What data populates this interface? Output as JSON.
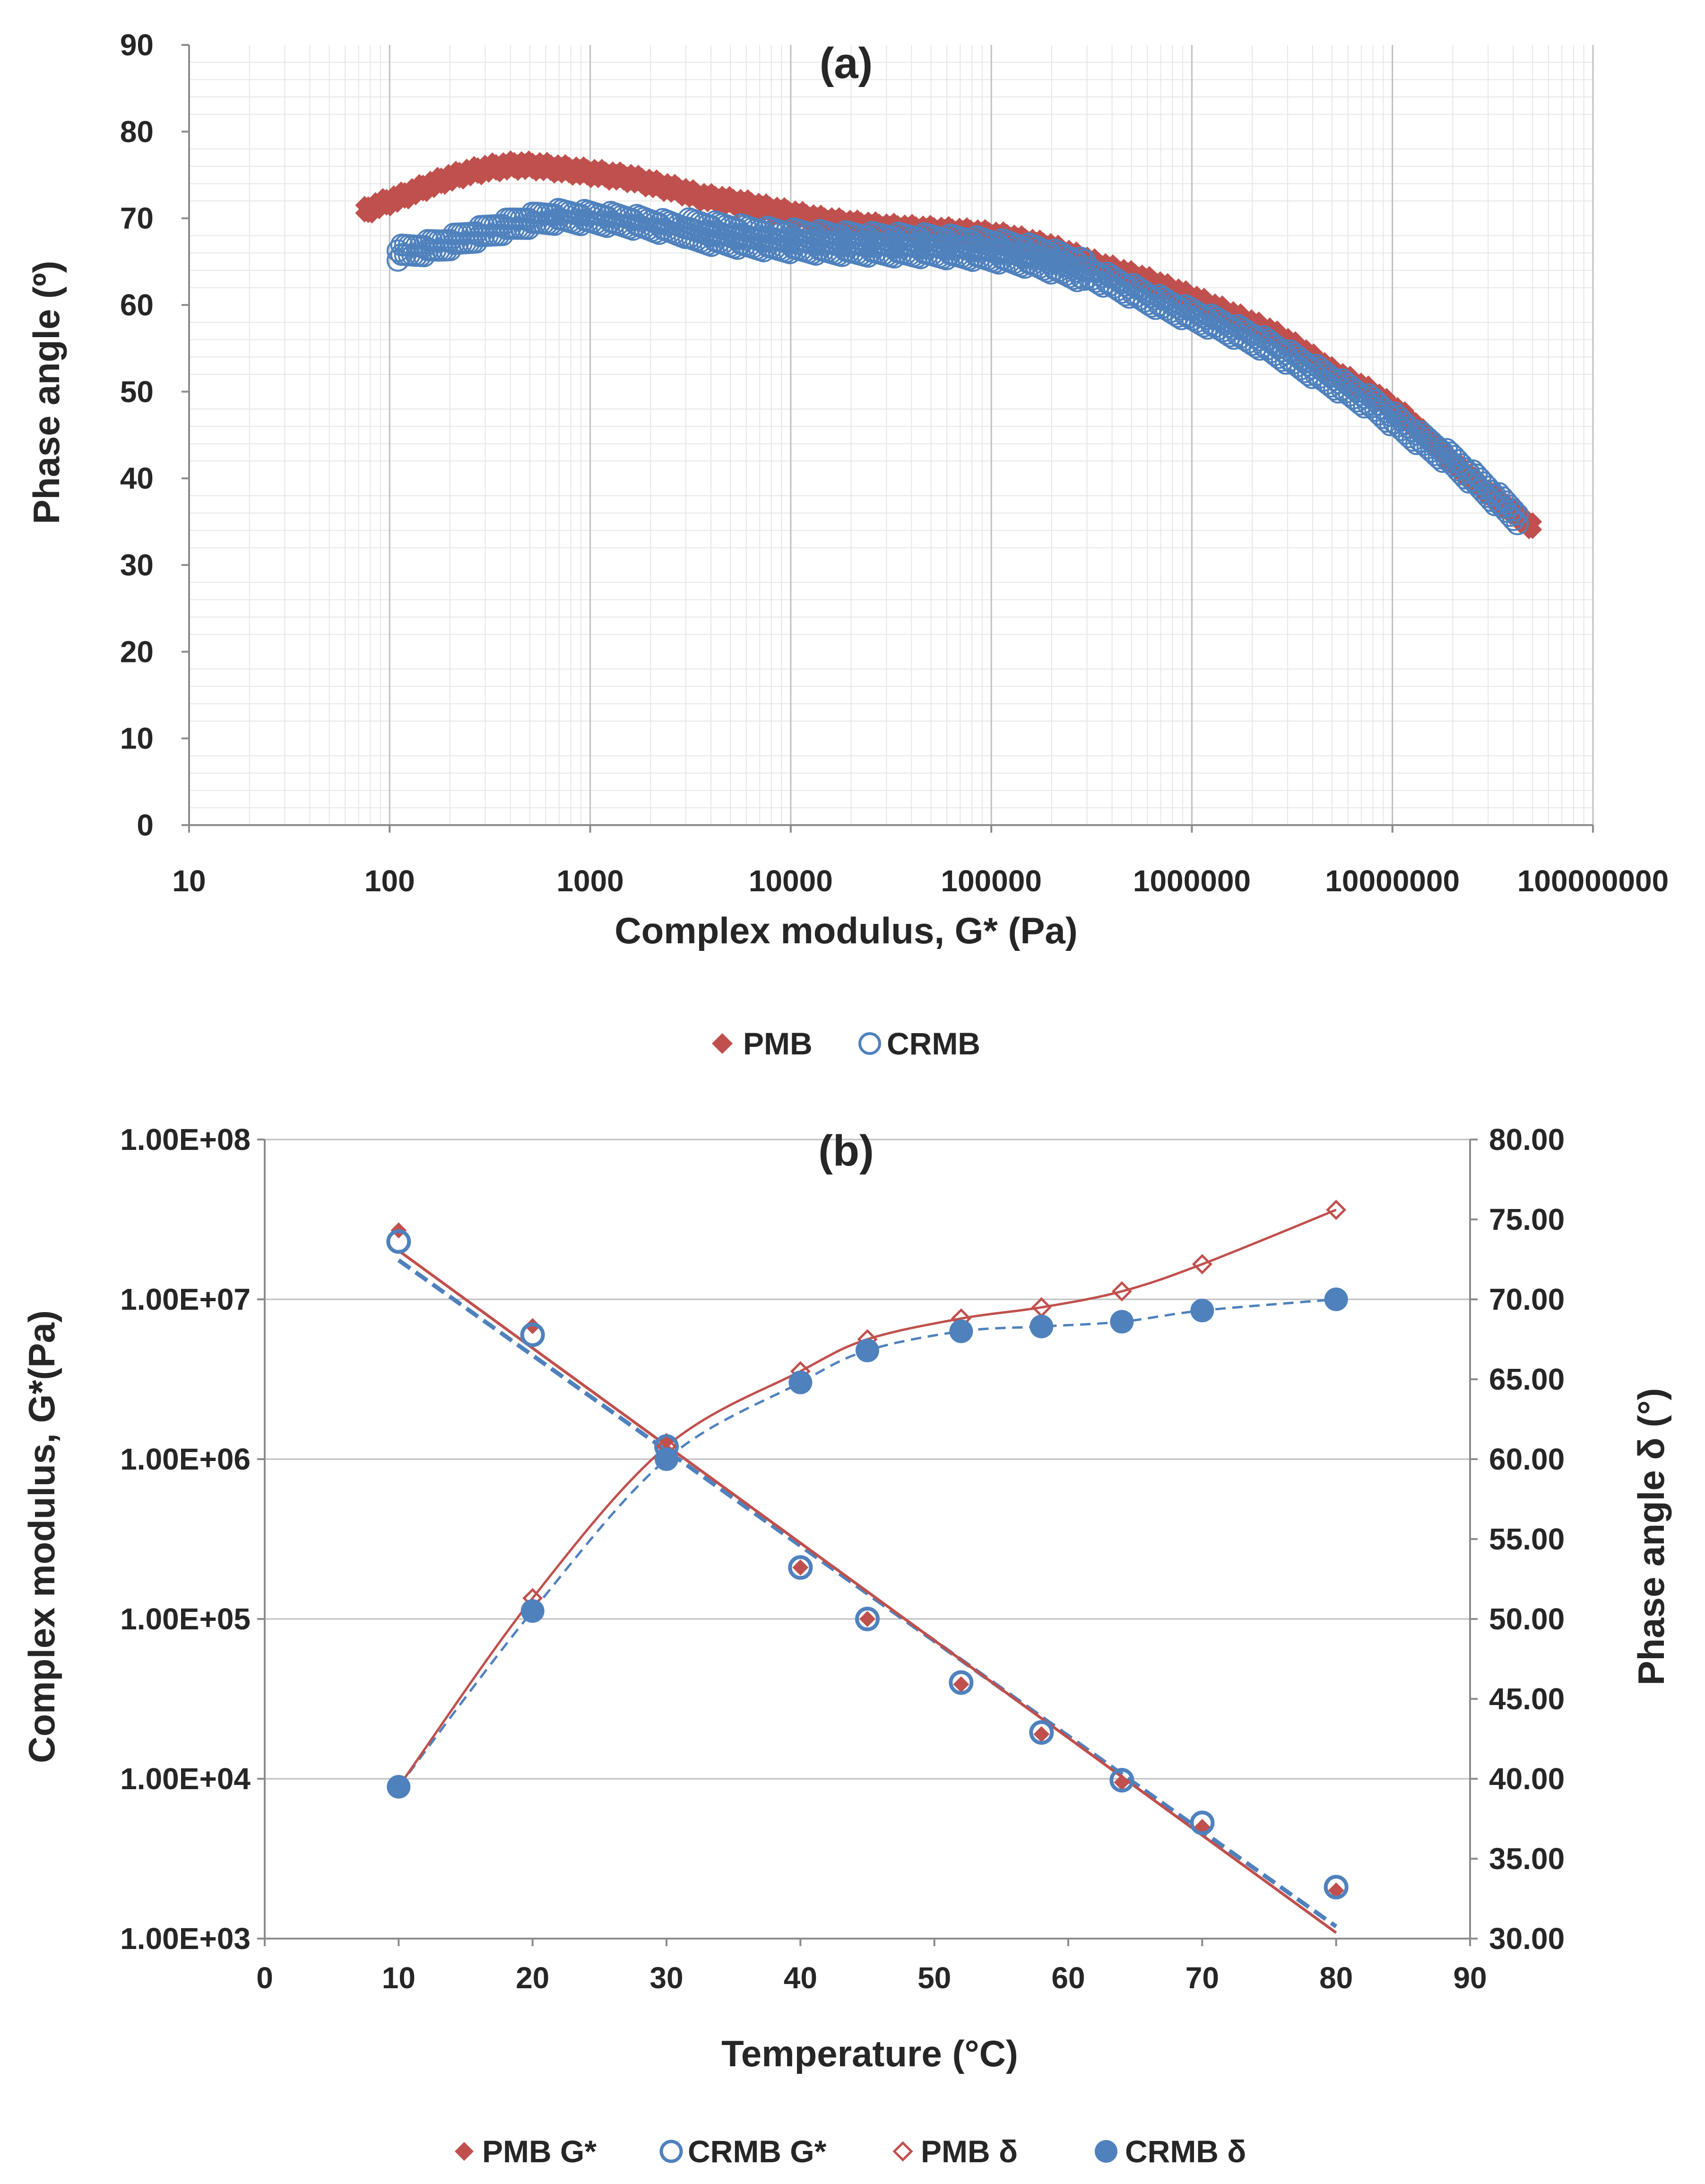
{
  "chart_data": [
    {
      "id": "a",
      "type": "scatter",
      "title": "(a)",
      "xlabel": "Complex modulus, G* (Pa)",
      "ylabel": "Phase angle (º)",
      "xscale": "log",
      "xlim": [
        10,
        100000000
      ],
      "ylim": [
        0,
        90
      ],
      "x_tick_labels": [
        "10",
        "100",
        "1000",
        "10000",
        "100000",
        "1000000",
        "10000000",
        "100000000"
      ],
      "y_tick_labels": [
        "0",
        "10",
        "20",
        "30",
        "40",
        "50",
        "60",
        "70",
        "80",
        "90"
      ],
      "grid": true,
      "legend": "bottom",
      "series": [
        {
          "name": "PMB",
          "marker": "filled-diamond",
          "color": "#C0504D",
          "x": [
            75,
            90,
            110,
            140,
            190,
            250,
            320,
            420,
            550,
            700,
            900,
            1200,
            1600,
            2100,
            2800,
            3500,
            4500,
            6000,
            7500,
            10000,
            14000,
            20000,
            30000,
            50000,
            80000,
            120000,
            200000,
            350000,
            600000,
            1000000,
            1600000,
            2500000,
            3500000,
            5000000,
            8000000,
            12000000,
            20000000,
            30000000,
            50000000
          ],
          "y": [
            71.5,
            72.3,
            73.0,
            74.0,
            75.2,
            76.0,
            76.5,
            76.8,
            76.7,
            76.4,
            76.1,
            75.7,
            75.3,
            74.6,
            73.9,
            73.2,
            72.8,
            72.3,
            71.8,
            71.2,
            70.5,
            70.0,
            69.6,
            69.3,
            69.0,
            68.5,
            67.3,
            65.2,
            63.5,
            61.5,
            59.5,
            57.5,
            55.5,
            53.0,
            50.5,
            47.5,
            42.5,
            39.0,
            35.0
          ]
        },
        {
          "name": "CRMB",
          "marker": "open-circle",
          "color": "#4F81BD",
          "x": [
            110,
            140,
            180,
            230,
            300,
            400,
            550,
            700,
            900,
            1200,
            1600,
            2200,
            3000,
            4200,
            6000,
            8500,
            12000,
            17000,
            25000,
            35000,
            50000,
            75000,
            110000,
            170000,
            260000,
            400000,
            600000,
            900000,
            1400000,
            2200000,
            3300000,
            5000000,
            8000000,
            12000000,
            20000000,
            30000000,
            42000000
          ],
          "y": [
            66.0,
            66.4,
            66.9,
            67.6,
            68.4,
            69.2,
            69.9,
            70.2,
            70.1,
            69.9,
            69.6,
            69.1,
            68.6,
            68.2,
            67.8,
            67.5,
            67.3,
            67.1,
            67.0,
            66.9,
            66.8,
            66.6,
            66.2,
            65.5,
            64.3,
            62.6,
            60.8,
            59.2,
            57.6,
            55.7,
            53.5,
            51.2,
            48.5,
            45.5,
            42.0,
            38.5,
            35.5
          ]
        }
      ]
    },
    {
      "id": "b",
      "type": "scatter",
      "title": "(b)",
      "xlabel": "Temperature (°C)",
      "ylabel": "Complex modulus,  G*(Pa)",
      "y2label": "Phase angle δ (°)",
      "xlim": [
        0,
        90
      ],
      "ylim": [
        1000,
        100000000
      ],
      "yscale": "log",
      "y2lim": [
        30,
        80
      ],
      "x_tick_labels": [
        "0",
        "10",
        "20",
        "30",
        "40",
        "50",
        "60",
        "70",
        "80",
        "90"
      ],
      "y_tick_labels": [
        "1.00E+03",
        "1.00E+04",
        "1.00E+05",
        "1.00E+06",
        "1.00E+07",
        "1.00E+08"
      ],
      "y2_tick_labels": [
        "30.00",
        "35.00",
        "40.00",
        "45.00",
        "50.00",
        "55.00",
        "60.00",
        "65.00",
        "70.00",
        "75.00",
        "80.00"
      ],
      "grid": true,
      "legend": "bottom",
      "x": [
        10,
        20,
        30,
        40,
        45,
        52,
        58,
        64,
        70,
        80
      ],
      "series": [
        {
          "name": "PMB G*",
          "axis": "left",
          "marker": "filled-diamond",
          "color": "#C0504D",
          "values": [
            27000000,
            6800000,
            1300000,
            210000,
            100000,
            39000,
            19000,
            9500,
            5000,
            2000
          ]
        },
        {
          "name": "CRMB G*",
          "axis": "left",
          "marker": "open-circle",
          "color": "#4F81BD",
          "values": [
            23000000,
            6000000,
            1200000,
            210000,
            100000,
            40000,
            19500,
            9800,
            5300,
            2100
          ]
        },
        {
          "name": "PMB δ",
          "axis": "right",
          "marker": "open-diamond",
          "color": "#C0504D",
          "values": [
            39.5,
            51.3,
            60.8,
            65.5,
            67.5,
            68.8,
            69.5,
            70.5,
            72.2,
            75.6
          ]
        },
        {
          "name": "CRMB δ",
          "axis": "right",
          "marker": "filled-circle",
          "color": "#4F81BD",
          "values": [
            39.5,
            50.5,
            60.0,
            64.8,
            66.8,
            68.0,
            68.3,
            68.6,
            69.3,
            70.0
          ]
        }
      ]
    }
  ]
}
